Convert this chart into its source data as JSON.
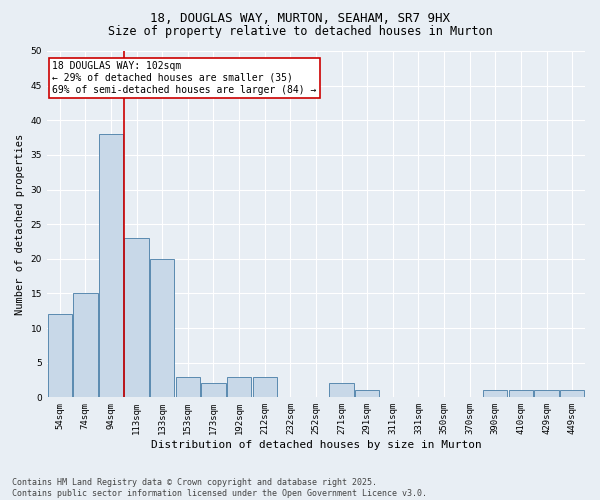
{
  "title1": "18, DOUGLAS WAY, MURTON, SEAHAM, SR7 9HX",
  "title2": "Size of property relative to detached houses in Murton",
  "xlabel": "Distribution of detached houses by size in Murton",
  "ylabel": "Number of detached properties",
  "categories": [
    "54sqm",
    "74sqm",
    "94sqm",
    "113sqm",
    "133sqm",
    "153sqm",
    "173sqm",
    "192sqm",
    "212sqm",
    "232sqm",
    "252sqm",
    "271sqm",
    "291sqm",
    "311sqm",
    "331sqm",
    "350sqm",
    "370sqm",
    "390sqm",
    "410sqm",
    "429sqm",
    "449sqm"
  ],
  "values": [
    12,
    15,
    38,
    23,
    20,
    3,
    2,
    3,
    3,
    0,
    0,
    2,
    1,
    0,
    0,
    0,
    0,
    1,
    1,
    1,
    1
  ],
  "bar_color": "#c8d8e8",
  "bar_edge_color": "#5a8ab0",
  "annotation_text": "18 DOUGLAS WAY: 102sqm\n← 29% of detached houses are smaller (35)\n69% of semi-detached houses are larger (84) →",
  "annotation_box_color": "#ffffff",
  "annotation_box_edge_color": "#cc0000",
  "annotation_text_color": "#000000",
  "red_line_color": "#cc0000",
  "background_color": "#e8eef4",
  "grid_color": "#ffffff",
  "ylim": [
    0,
    50
  ],
  "yticks": [
    0,
    5,
    10,
    15,
    20,
    25,
    30,
    35,
    40,
    45,
    50
  ],
  "footer": "Contains HM Land Registry data © Crown copyright and database right 2025.\nContains public sector information licensed under the Open Government Licence v3.0.",
  "title1_fontsize": 9,
  "title2_fontsize": 8.5,
  "xlabel_fontsize": 8,
  "ylabel_fontsize": 7.5,
  "tick_fontsize": 6.5,
  "annotation_fontsize": 7,
  "footer_fontsize": 6
}
